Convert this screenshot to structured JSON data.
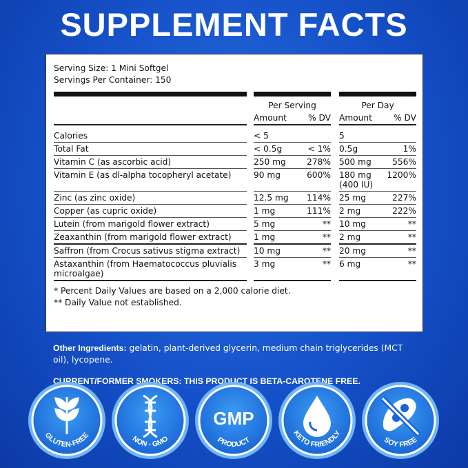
{
  "header": {
    "title": "SUPPLEMENT FACTS"
  },
  "label": {
    "serving_size": "Serving Size: 1 Mini Softgel",
    "servings_per_container": "Servings Per Container: 150",
    "column_groups": [
      "Per Serving",
      "Per Day"
    ],
    "columns": [
      "Amount",
      "% DV",
      "Amount",
      "% DV"
    ],
    "rows": [
      [
        "Calories",
        "< 5",
        null,
        "5",
        null
      ],
      [
        "Total Fat",
        "< 0.5g",
        "< 1%",
        "0.5g",
        "1%"
      ],
      [
        "Vitamin C (as ascorbic acid)",
        "250 mg",
        "278%",
        "500 mg",
        "556%"
      ],
      [
        "Vitamin E (as dl-alpha tocopheryl acetate)",
        "90 mg",
        "600%",
        "180 mg (400 IU)",
        "1200%"
      ],
      [
        "Zinc (as zinc oxide)",
        "12.5 mg",
        "114%",
        "25 mg",
        "227%"
      ],
      [
        "Copper (as cupric oxide)",
        "1 mg",
        "111%",
        "2 mg",
        "222%"
      ],
      [
        "Lutein (from marigold flower extract)",
        "5 mg",
        "**",
        "10 mg",
        "**"
      ],
      [
        "Zeaxanthin (from marigold flower extract)",
        "1 mg",
        "**",
        "2 mg",
        "**"
      ],
      [
        "Saffron (from Crocus sativus stigma extract)",
        "10 mg",
        "**",
        "20 mg",
        "**"
      ],
      [
        "Astaxanthin (from Haematococcus pluvialis microalgae)",
        "3 mg",
        "**",
        "6 mg",
        "**"
      ]
    ],
    "footnotes": [
      "* Percent Daily Values are based on a 2,000 calorie diet.",
      "** Daily Value not established."
    ]
  },
  "other_ingredients": {
    "label": "Other Ingredients:",
    "text": "gelatin, plant-derived glycerin, medium chain triglycerides (MCT oil), lycopene."
  },
  "smokers_note": "CURRENT/FORMER SMOKERS: THIS PRODUCT IS BETA-CAROTENE FREE.",
  "badges": [
    {
      "label": "GLUTEN-FREE"
    },
    {
      "label": "NON - GMO"
    },
    {
      "main": "GMP",
      "label": "PRODUCT"
    },
    {
      "label": "KETO FRIENDLY"
    },
    {
      "label": "SOY FREE"
    }
  ]
}
